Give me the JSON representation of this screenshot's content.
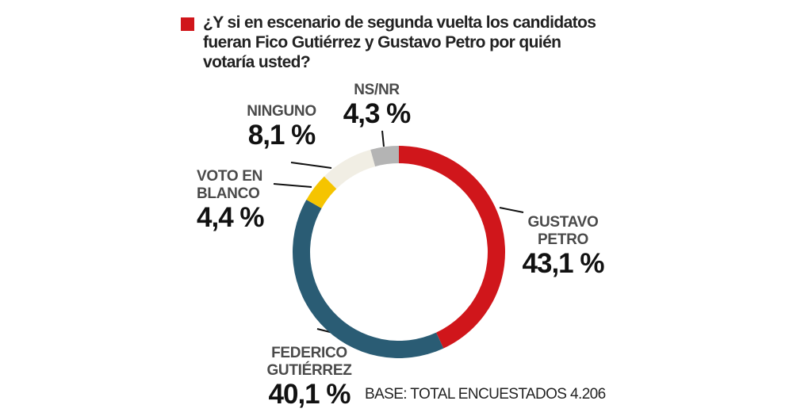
{
  "chart_data": {
    "type": "donut",
    "title": "¿Y si en escenario de segunda vuelta los candidatos fueran Fico Gutiérrez y Gustavo Petro por quién votaría usted?",
    "title_marker_color": "#d0161b",
    "categories": [
      "GUSTAVO PETRO",
      "FEDERICO GUTIÉRREZ",
      "VOTO EN BLANCO",
      "NINGUNO",
      "NS/NR"
    ],
    "values": [
      43.1,
      40.1,
      4.4,
      8.1,
      4.3
    ],
    "value_labels": [
      "43,1 %",
      "40,1 %",
      "4,4 %",
      "8,1 %",
      "4,3 %"
    ],
    "colors": [
      "#d0161b",
      "#2a5c74",
      "#f5c400",
      "#f1eee4",
      "#b4b4b4"
    ],
    "note": "BASE: TOTAL ENCUESTADOS 4.206"
  }
}
